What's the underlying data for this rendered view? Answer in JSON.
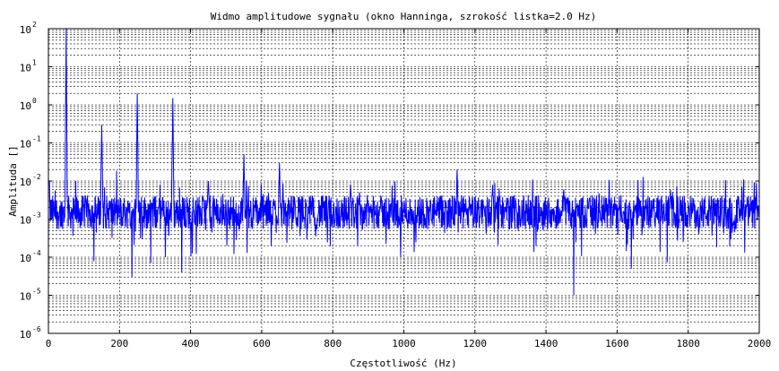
{
  "chart_data": {
    "type": "line",
    "title": "Widmo amplitudowe sygnału (okno Hanninga, szrokość listka=2.0 Hz)",
    "xlabel": "Częstotliwość (Hz)",
    "ylabel": "Amplituda []",
    "xlim": [
      0,
      2000
    ],
    "ylim": [
      1e-06,
      100
    ],
    "yscale": "log",
    "grid": true,
    "grid_minor_y": true,
    "line_color": "#0000ff",
    "xticks": [
      0,
      200,
      400,
      600,
      800,
      1000,
      1200,
      1400,
      1600,
      1800,
      2000
    ],
    "xtick_labels": [
      "0",
      "200",
      "400",
      "600",
      "800",
      "1000",
      "1200",
      "1400",
      "1600",
      "1800",
      "2000"
    ],
    "ytick_exponents": [
      -6,
      -5,
      -4,
      -3,
      -2,
      -1,
      0,
      1,
      2
    ],
    "ytick_base": "10",
    "peaks": [
      {
        "x": 50,
        "y": 100
      },
      {
        "x": 150,
        "y": 0.3
      },
      {
        "x": 250,
        "y": 2
      },
      {
        "x": 350,
        "y": 1.5
      },
      {
        "x": 450,
        "y": 0.01
      },
      {
        "x": 550,
        "y": 0.05
      },
      {
        "x": 650,
        "y": 0.03
      },
      {
        "x": 850,
        "y": 0.008
      },
      {
        "x": 1150,
        "y": 0.02
      },
      {
        "x": 1250,
        "y": 0.008
      },
      {
        "x": 1450,
        "y": 0.006
      },
      {
        "x": 1750,
        "y": 0.006
      }
    ],
    "dips": [
      {
        "x": 235,
        "y": 3e-05
      },
      {
        "x": 375,
        "y": 4e-05
      },
      {
        "x": 1478,
        "y": 1e-05
      },
      {
        "x": 1640,
        "y": 5e-05
      }
    ],
    "noise_floor": 0.0015
  }
}
